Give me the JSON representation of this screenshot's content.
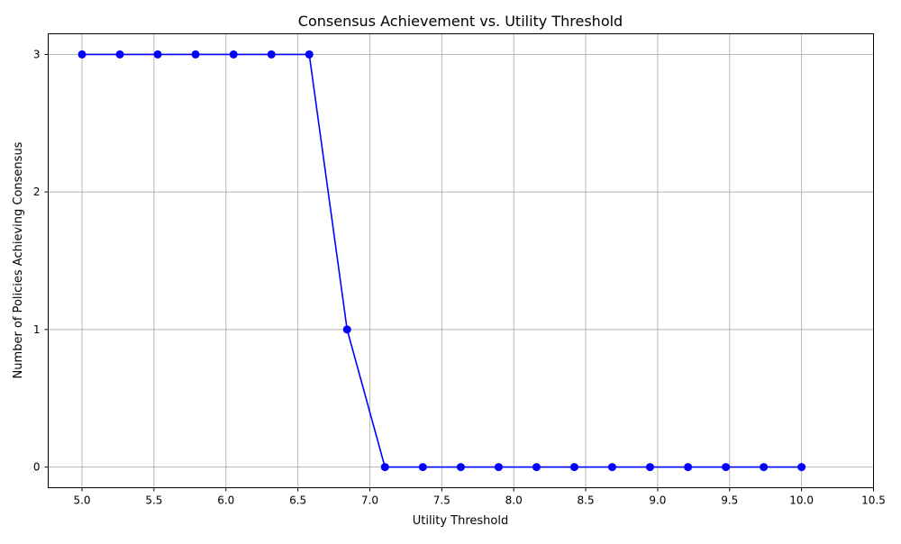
{
  "chart_data": {
    "type": "line",
    "title": "Consensus Achievement vs. Utility Threshold",
    "xlabel": "Utility Threshold",
    "ylabel": "Number of Policies Achieving Consensus",
    "xlim": [
      4.765,
      10.5
    ],
    "ylim": [
      -0.15,
      3.15
    ],
    "xticks": [
      "5.0",
      "5.5",
      "6.0",
      "6.5",
      "7.0",
      "7.5",
      "8.0",
      "8.5",
      "9.0",
      "9.5",
      "10.0",
      "10.5"
    ],
    "yticks": [
      "0",
      "1",
      "2",
      "3"
    ],
    "grid": true,
    "series": [
      {
        "color": "#0000ff",
        "marker": "circle",
        "x": [
          5.0,
          5.263,
          5.526,
          5.789,
          6.053,
          6.316,
          6.579,
          6.842,
          7.105,
          7.368,
          7.632,
          7.895,
          8.158,
          8.421,
          8.684,
          8.947,
          9.211,
          9.474,
          9.737,
          10.0
        ],
        "y": [
          3,
          3,
          3,
          3,
          3,
          3,
          3,
          1,
          0,
          0,
          0,
          0,
          0,
          0,
          0,
          0,
          0,
          0,
          0,
          0
        ]
      }
    ]
  }
}
